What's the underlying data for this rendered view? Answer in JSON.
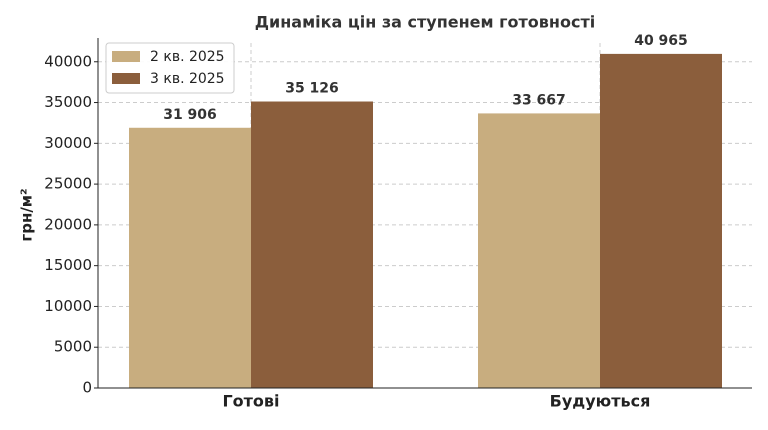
{
  "chart_data": {
    "type": "bar",
    "title": "Динаміка цін за ступенем готовності",
    "ylabel": "грн/м²",
    "categories": [
      "Готові",
      "Будуються"
    ],
    "series": [
      {
        "name": "2 кв. 2025",
        "color": "#c8ad7f",
        "values": [
          31906,
          33667
        ],
        "value_labels": [
          "31 906",
          "33 667"
        ]
      },
      {
        "name": "3 кв. 2025",
        "color": "#8b5e3c",
        "values": [
          35126,
          40965
        ],
        "value_labels": [
          "35 126",
          "40 965"
        ]
      }
    ],
    "ylim": [
      0,
      42300
    ],
    "yticks": [
      0,
      5000,
      10000,
      15000,
      20000,
      25000,
      30000,
      35000,
      40000
    ],
    "grid": true,
    "legend": "upper left"
  }
}
